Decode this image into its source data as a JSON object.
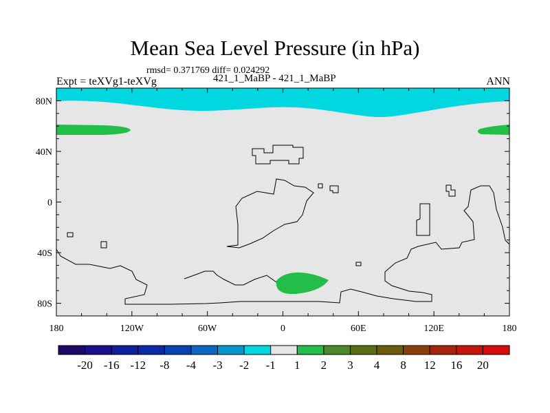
{
  "chart_data": {
    "type": "heatmap",
    "title": "Mean Sea Level Pressure (in hPa)",
    "subtitle": "rmsd= 0.371769 diff= 0.024292",
    "left_label": "Expt = teXVg1-teXVg",
    "center_label": "421_1_MaBP - 421_1_MaBP",
    "right_label": "ANN",
    "x_ticks": [
      "180",
      "120W",
      "60W",
      "0",
      "60E",
      "120E",
      "180"
    ],
    "y_ticks": [
      "80N",
      "40N",
      "0",
      "40S",
      "80S"
    ],
    "lon_range": [
      -180,
      180
    ],
    "lat_range": [
      -90,
      90
    ],
    "background_color": "#e6e6e6",
    "regions": [
      {
        "name": "arctic-band",
        "level": "-2 to -1",
        "color": "#00d7e0"
      },
      {
        "name": "pacific-high-west",
        "level": "1 to 2",
        "color": "#23be4a"
      },
      {
        "name": "pacific-high-east",
        "level": "1 to 2",
        "color": "#23be4a"
      },
      {
        "name": "southern-ocean-blob",
        "level": "1 to 2",
        "color": "#23be4a"
      }
    ],
    "colorbar": {
      "labels": [
        "-20",
        "-16",
        "-12",
        "-8",
        "-4",
        "-3",
        "-2",
        "-1",
        "1",
        "2",
        "3",
        "4",
        "8",
        "12",
        "16",
        "20"
      ],
      "colors": [
        "#1f0867",
        "#1a0f8f",
        "#0f1e9c",
        "#0a2aa7",
        "#0942b4",
        "#0b66c4",
        "#0797d0",
        "#00d7e0",
        "#e6e6e6",
        "#23be4a",
        "#4a8a2a",
        "#5a6c16",
        "#6e5a0b",
        "#8a3f0a",
        "#a8230b",
        "#c4140b",
        "#d90a0a"
      ]
    }
  }
}
